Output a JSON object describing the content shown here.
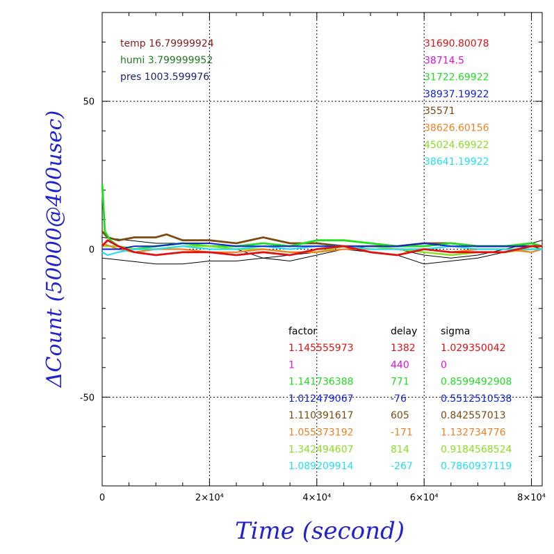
{
  "chart_data": {
    "type": "line",
    "xlabel": "Time (second)",
    "ylabel": "ΔCount (50000@400usec)",
    "xlim": [
      0,
      82000
    ],
    "ylim": [
      -80,
      80
    ],
    "x_ticks": [
      {
        "value": 0,
        "label": "0"
      },
      {
        "value": 20000,
        "label": "2×10⁴"
      },
      {
        "value": 40000,
        "label": "4×10⁴"
      },
      {
        "value": 60000,
        "label": "6×10⁴"
      },
      {
        "value": 80000,
        "label": "8×10⁴"
      }
    ],
    "y_ticks": [
      {
        "value": 50,
        "label": "50"
      },
      {
        "value": 0,
        "label": "0"
      },
      {
        "value": -50,
        "label": "-50"
      }
    ],
    "grid": true,
    "env_labels": [
      {
        "text": "temp 16.79999924",
        "color": "#8b1a1a"
      },
      {
        "text": "humi 3.799999952",
        "color": "#1f7a1f"
      },
      {
        "text": "pres 1003.599976",
        "color": "#1a237e"
      }
    ],
    "table_headers": [
      "factor",
      "delay",
      "sigma"
    ],
    "series": [
      {
        "mean": "31690.80078",
        "factor": "1.145555973",
        "delay": "1382",
        "sigma": "1.029350042",
        "color": "#e01010",
        "width": 2.8,
        "x": [
          0,
          1000,
          3000,
          6000,
          10000,
          15000,
          20000,
          25000,
          30000,
          35000,
          40000,
          45000,
          50000,
          55000,
          60000,
          65000,
          70000,
          75000,
          80000,
          82000
        ],
        "y": [
          1,
          3,
          1,
          -1,
          -2,
          -1,
          -1,
          -2,
          -1,
          -2,
          0,
          1,
          -1,
          -2,
          0,
          -1,
          -1,
          -1,
          1,
          1
        ]
      },
      {
        "mean": "38714.5",
        "factor": "1",
        "delay": "440",
        "sigma": "0",
        "color": "#e010e0",
        "width": 1,
        "x": [],
        "y": []
      },
      {
        "mean": "31722.69922",
        "factor": "1.141736388",
        "delay": "771",
        "sigma": "0.8599492908",
        "color": "#20dd20",
        "width": 2.8,
        "x": [
          0,
          500,
          1500,
          3000,
          6000,
          10000,
          15000,
          20000,
          25000,
          30000,
          35000,
          40000,
          45000,
          50000,
          55000,
          60000,
          65000,
          70000,
          75000,
          80000,
          82000
        ],
        "y": [
          22,
          6,
          3,
          1,
          0,
          1,
          2,
          1,
          1,
          2,
          1,
          3,
          3,
          2,
          1,
          1,
          2,
          1,
          1,
          2,
          1
        ]
      },
      {
        "mean": "38937.19922",
        "factor": "1.012479067",
        "delay": "-76",
        "sigma": "0.5512510538",
        "color": "#1020e0",
        "width": 2,
        "x": [
          0,
          3000,
          6000,
          10000,
          15000,
          20000,
          25000,
          30000,
          35000,
          40000,
          45000,
          50000,
          55000,
          60000,
          65000,
          70000,
          75000,
          80000,
          82000
        ],
        "y": [
          0,
          0,
          1,
          1,
          2,
          2,
          1,
          1,
          1,
          1,
          1,
          1,
          1,
          2,
          1,
          1,
          1,
          1,
          1
        ]
      },
      {
        "mean": "35571",
        "factor": "1.110391617",
        "delay": "605",
        "sigma": "0.842557013",
        "color": "#7a4a10",
        "width": 2.8,
        "x": [
          0,
          1000,
          3000,
          6000,
          10000,
          12000,
          15000,
          20000,
          25000,
          30000,
          35000,
          40000,
          45000,
          50000,
          55000,
          60000,
          65000,
          70000,
          75000,
          80000,
          82000
        ],
        "y": [
          6,
          4,
          3,
          4,
          4,
          5,
          3,
          3,
          2,
          4,
          2,
          2,
          1,
          1,
          1,
          2,
          2,
          1,
          1,
          1,
          1
        ]
      },
      {
        "mean": "38626.60156",
        "factor": "1.055373192",
        "delay": "-171",
        "sigma": "1.132734776",
        "color": "#f08020",
        "width": 2.2,
        "x": [
          0,
          3000,
          6000,
          10000,
          15000,
          20000,
          25000,
          30000,
          35000,
          40000,
          45000,
          50000,
          55000,
          60000,
          65000,
          70000,
          75000,
          80000,
          82000
        ],
        "y": [
          2,
          0,
          -1,
          0,
          0,
          -1,
          -1,
          0,
          -1,
          -1,
          0,
          0,
          0,
          0,
          -1,
          0,
          0,
          -1,
          0
        ]
      },
      {
        "mean": "45024.69922",
        "factor": "1.342494607",
        "delay": "814",
        "sigma": "0.9184568524",
        "color": "#88e020",
        "width": 2.4,
        "x": [
          0,
          3000,
          6000,
          10000,
          15000,
          20000,
          25000,
          30000,
          35000,
          40000,
          45000,
          50000,
          55000,
          60000,
          65000,
          70000,
          75000,
          80000,
          82000
        ],
        "y": [
          1,
          1,
          0,
          0,
          1,
          1,
          0,
          0,
          -1,
          -1,
          1,
          1,
          0,
          -1,
          -2,
          -1,
          -1,
          0,
          0
        ]
      },
      {
        "mean": "38641.19922",
        "factor": "1.089209914",
        "delay": "-267",
        "sigma": "0.7860937119",
        "color": "#20e0f0",
        "width": 2.2,
        "x": [
          0,
          1000,
          3000,
          6000,
          10000,
          15000,
          20000,
          25000,
          30000,
          35000,
          40000,
          45000,
          50000,
          55000,
          60000,
          65000,
          70000,
          75000,
          80000,
          82000
        ],
        "y": [
          -1,
          -2,
          -1,
          0,
          0,
          1,
          0,
          0,
          1,
          0,
          1,
          1,
          0,
          0,
          0,
          1,
          0,
          0,
          0,
          0
        ]
      }
    ],
    "black_lines": [
      {
        "x": [
          0,
          5000,
          10000,
          15000,
          20000,
          25000,
          30000,
          35000,
          40000,
          45000,
          50000,
          55000,
          60000,
          65000,
          70000,
          75000,
          80000,
          82000
        ],
        "y": [
          -3,
          -4,
          -5,
          -5,
          -4,
          -4,
          -3,
          -2,
          -1,
          0,
          -1,
          -2,
          -5,
          -4,
          -3,
          -1,
          1,
          0
        ]
      },
      {
        "x": [
          0,
          5000,
          10000,
          15000,
          20000,
          25000,
          30000,
          35000,
          40000,
          45000,
          50000,
          55000,
          60000,
          65000,
          70000,
          75000,
          80000,
          82000
        ],
        "y": [
          4,
          3,
          2,
          2,
          1,
          0,
          -3,
          -4,
          -2,
          0,
          1,
          0,
          -2,
          -3,
          -2,
          0,
          2,
          3
        ]
      }
    ]
  }
}
